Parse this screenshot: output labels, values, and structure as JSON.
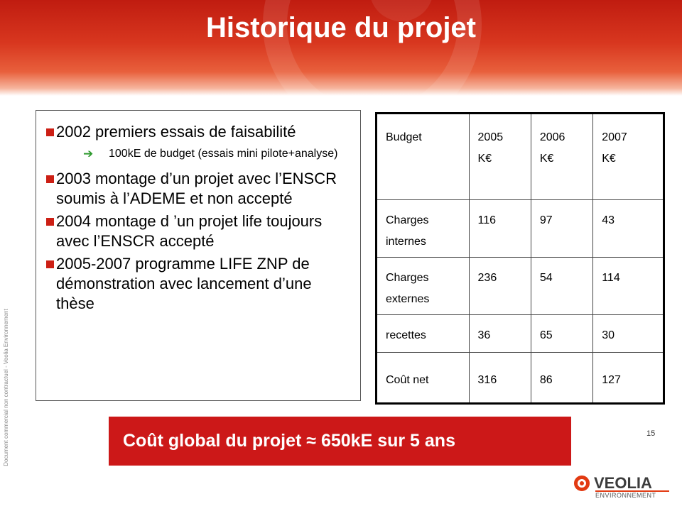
{
  "slide": {
    "title": "Historique du projet",
    "side_note": "Document commercial non contractuel - Veolia Environnement",
    "page_number": "15"
  },
  "bullets": [
    {
      "text": "2002 premiers essais de faisabilité",
      "sub": "100kE de budget (essais mini pilote+analyse)"
    },
    {
      "text": "2003 montage d’un projet avec l’ENSCR soumis à l’ADEME et non accepté"
    },
    {
      "text": "2004 montage d ’un projet life toujours avec l’ENSCR accepté"
    },
    {
      "text": "2005-2007 programme LIFE ZNP de démonstration avec lancement d’une thèse"
    }
  ],
  "budget_table": {
    "header": [
      "Budget",
      "2005",
      "2006",
      "2007"
    ],
    "unit": "K€",
    "rows": [
      {
        "label": "Charges internes",
        "values": [
          "116",
          "97",
          "43"
        ]
      },
      {
        "label": "Charges externes",
        "values": [
          "236",
          "54",
          "114"
        ]
      },
      {
        "label": "recettes",
        "values": [
          "36",
          "65",
          "30"
        ]
      },
      {
        "label": "Coût net",
        "values": [
          "316",
          "86",
          "127"
        ]
      }
    ]
  },
  "summary": {
    "text": "Coût global du projet  ≈ 650kE sur 5 ans"
  },
  "logo": {
    "name": "VEOLIA",
    "tagline": "ENVIRONNEMENT",
    "accent_color": "#e23a12"
  },
  "colors": {
    "header_red": "#c01c10",
    "bullet_red": "#cc1f14",
    "summary_red": "#cc1818",
    "arrow_green": "#2f9a2f"
  }
}
